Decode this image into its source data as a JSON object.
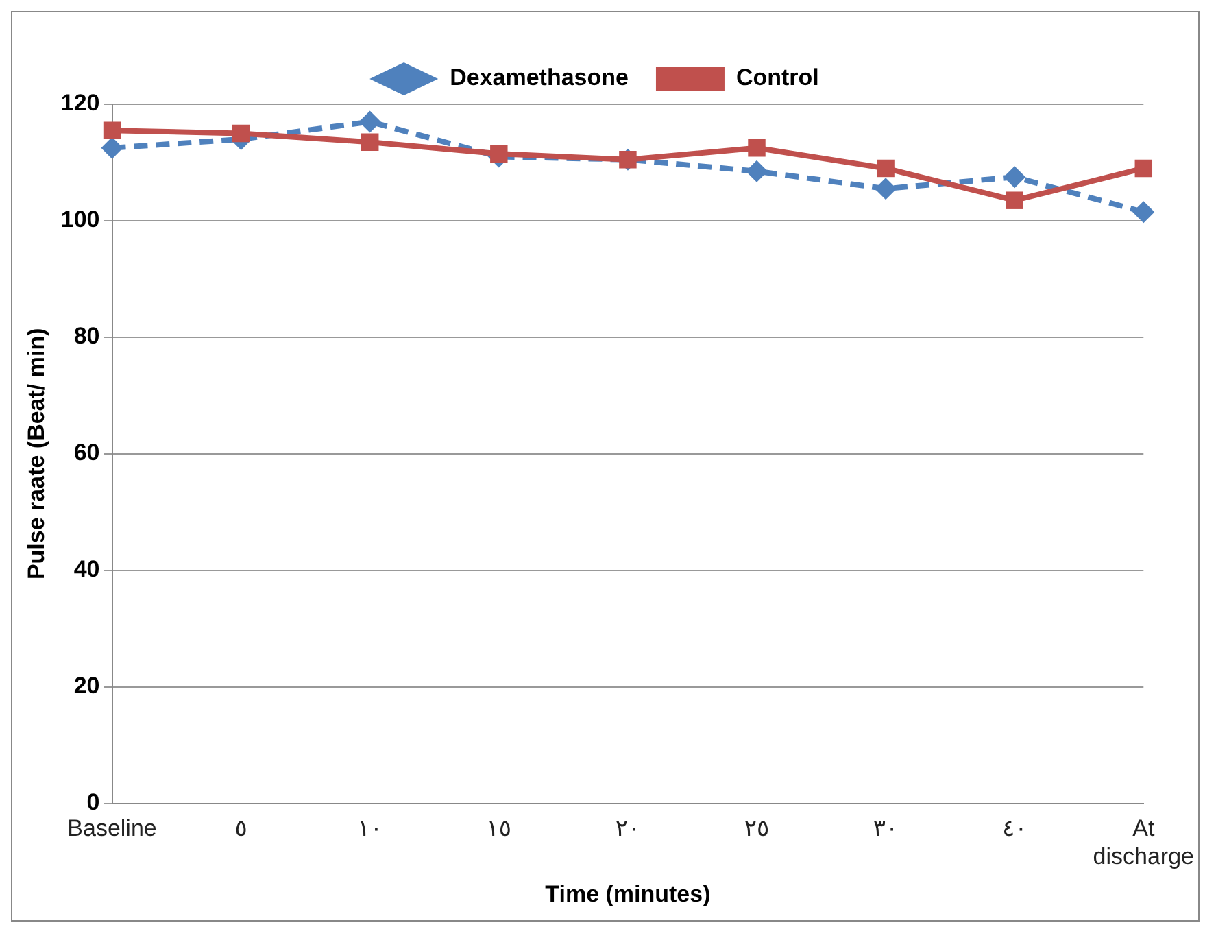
{
  "chart_data": {
    "type": "line",
    "xlabel": "Time (minutes)",
    "ylabel": "Pulse raate (Beat/ min)",
    "categories": [
      "Baseline",
      "٥",
      "١٠",
      "١٥",
      "٢٠",
      "٢٥",
      "٣٠",
      "٤٠",
      "At discharge"
    ],
    "series": [
      {
        "name": "Dexamethasone",
        "color": "#4f81bd",
        "marker": "diamond",
        "line_style": "dashed",
        "values": [
          112.5,
          114,
          117,
          111,
          110.5,
          108.5,
          105.5,
          107.5,
          101.5
        ]
      },
      {
        "name": "Control",
        "color": "#c0504d",
        "marker": "square",
        "line_style": "solid",
        "values": [
          115.5,
          115,
          113.5,
          111.5,
          110.5,
          112.5,
          109,
          103.5,
          109
        ]
      }
    ],
    "ylim": [
      0,
      120
    ],
    "yticks": [
      0,
      20,
      40,
      60,
      80,
      100,
      120
    ],
    "grid": "y",
    "legend": "top"
  }
}
